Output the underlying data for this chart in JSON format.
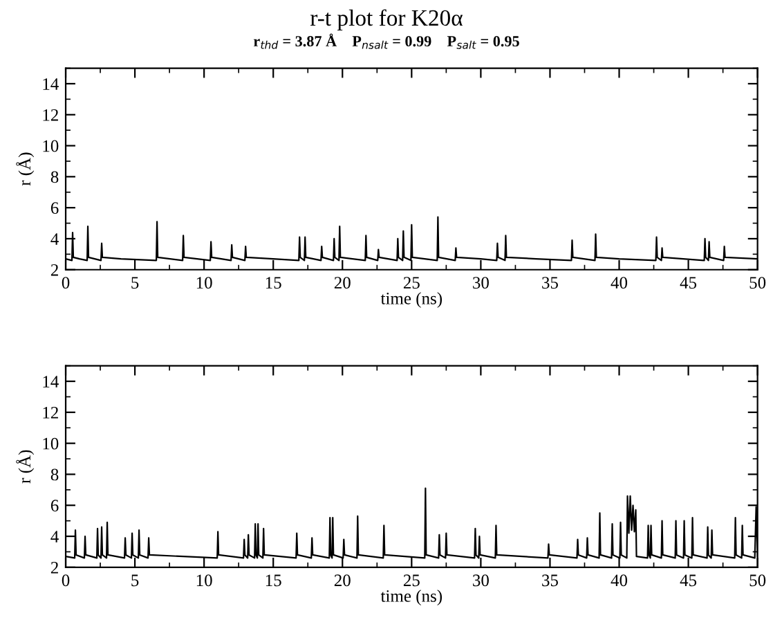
{
  "chart_data": [
    {
      "type": "line",
      "title": "r-t plot for K20α",
      "subtitle": "r$_{thd}$ = 3.87 Å    P$_{nsalt}$ = 0.99    P$_{salt}$ = 0.95",
      "xlabel": "time (ns)",
      "ylabel": "r (Å)",
      "xlim": [
        0,
        50
      ],
      "xticks": [
        0,
        5,
        10,
        15,
        20,
        25,
        30,
        35,
        40,
        45,
        50
      ],
      "ylim": [
        2,
        15
      ],
      "yticks": [
        2,
        4,
        6,
        8,
        10,
        12,
        14
      ],
      "grid": false,
      "legend": false,
      "line_style": "solid",
      "series": [
        {
          "color": "#000000",
          "x": [
            0,
            0.45,
            0.5,
            0.55,
            1.0,
            1.55,
            1.6,
            1.65,
            2.55,
            2.6,
            2.65,
            4.0,
            6.55,
            6.6,
            6.65,
            8.45,
            8.5,
            8.55,
            10.45,
            10.5,
            10.55,
            11.95,
            12,
            12.05,
            12.95,
            13,
            13.05,
            15,
            16.85,
            16.9,
            16.95,
            17.25,
            17.3,
            17.35,
            18.45,
            18.5,
            18.55,
            19.35,
            19.4,
            19.45,
            19.75,
            19.8,
            19.85,
            21.65,
            21.7,
            21.75,
            22.55,
            22.6,
            22.65,
            23.95,
            24,
            24.05,
            24.35,
            24.4,
            24.45,
            24.95,
            25,
            25.05,
            26.85,
            26.9,
            26.95,
            28.15,
            28.2,
            28.25,
            30,
            31.15,
            31.2,
            31.25,
            31.75,
            31.8,
            31.85,
            34,
            36.55,
            36.6,
            36.65,
            38.25,
            38.3,
            38.35,
            40,
            42.65,
            42.7,
            42.75,
            43.05,
            43.1,
            43.15,
            46.15,
            46.2,
            46.25,
            46.45,
            46.5,
            46.55,
            47.55,
            47.6,
            47.65,
            50
          ],
          "values": [
            2.7,
            2.6,
            4.4,
            2.8,
            2.7,
            2.6,
            4.8,
            2.8,
            2.6,
            3.7,
            2.8,
            2.7,
            2.6,
            5.1,
            2.8,
            2.6,
            4.2,
            2.8,
            2.6,
            3.8,
            2.8,
            2.6,
            3.6,
            2.8,
            2.6,
            3.5,
            2.8,
            2.7,
            2.6,
            4.1,
            2.8,
            2.6,
            4.1,
            2.8,
            2.6,
            3.5,
            2.8,
            2.6,
            4.0,
            2.8,
            2.6,
            4.8,
            2.8,
            2.6,
            4.2,
            2.8,
            2.6,
            3.3,
            2.8,
            2.6,
            4.0,
            2.8,
            2.6,
            4.5,
            2.8,
            2.6,
            4.9,
            2.8,
            2.6,
            5.4,
            2.8,
            2.6,
            3.4,
            2.8,
            2.7,
            2.6,
            3.7,
            2.8,
            2.6,
            4.2,
            2.8,
            2.7,
            2.6,
            3.9,
            2.8,
            2.6,
            4.3,
            2.8,
            2.7,
            2.6,
            4.1,
            2.8,
            2.6,
            3.4,
            2.8,
            2.6,
            4.0,
            2.8,
            2.6,
            3.8,
            2.8,
            2.6,
            3.5,
            2.8,
            2.7
          ]
        }
      ]
    },
    {
      "type": "line",
      "xlabel": "time (ns)",
      "ylabel": "r (Å)",
      "xlim": [
        0,
        50
      ],
      "xticks": [
        0,
        5,
        10,
        15,
        20,
        25,
        30,
        35,
        40,
        45,
        50
      ],
      "ylim": [
        2,
        15
      ],
      "yticks": [
        2,
        4,
        6,
        8,
        10,
        12,
        14
      ],
      "grid": false,
      "legend": false,
      "line_style": "solid",
      "series": [
        {
          "color": "#000000",
          "x": [
            0,
            0.65,
            0.7,
            0.75,
            1.35,
            1.4,
            1.45,
            2.25,
            2.3,
            2.35,
            2.55,
            2.6,
            2.65,
            2.95,
            3.0,
            3.05,
            4.25,
            4.3,
            4.35,
            4.75,
            4.8,
            4.85,
            5.25,
            5.3,
            5.35,
            5.95,
            6.0,
            6.05,
            8.5,
            10.95,
            11.0,
            11.05,
            12.85,
            12.9,
            12.95,
            13.15,
            13.2,
            13.25,
            13.65,
            13.7,
            13.75,
            13.85,
            13.9,
            13.95,
            14.25,
            14.3,
            14.35,
            16.65,
            16.7,
            16.75,
            17.75,
            17.8,
            17.85,
            19.05,
            19.1,
            19.15,
            19.25,
            19.3,
            19.35,
            20.05,
            20.1,
            20.15,
            21.05,
            21.1,
            21.15,
            22.95,
            23.0,
            23.05,
            25.95,
            26.0,
            26.05,
            26.95,
            27.0,
            27.05,
            27.45,
            27.5,
            27.55,
            29.55,
            29.6,
            29.65,
            29.85,
            29.9,
            29.95,
            31.05,
            31.1,
            31.15,
            33,
            34.85,
            34.9,
            34.95,
            36.95,
            37.0,
            37.05,
            37.65,
            37.7,
            37.75,
            38.55,
            38.6,
            38.65,
            39.45,
            39.5,
            39.55,
            40.05,
            40.1,
            40.15,
            40.55,
            40.6,
            40.7,
            40.8,
            40.9,
            41.0,
            41.1,
            41.2,
            41.25,
            42.05,
            42.1,
            42.15,
            42.25,
            42.3,
            42.35,
            43.05,
            43.1,
            43.15,
            44.05,
            44.1,
            44.15,
            44.65,
            44.7,
            44.75,
            45.25,
            45.3,
            45.35,
            46.35,
            46.4,
            46.45,
            46.65,
            46.7,
            46.75,
            48.35,
            48.4,
            48.45,
            48.85,
            48.9,
            48.95,
            49.8,
            49.9,
            50
          ],
          "values": [
            2.7,
            2.6,
            4.4,
            2.8,
            2.6,
            4.0,
            2.8,
            2.6,
            4.5,
            2.8,
            2.6,
            4.6,
            2.8,
            2.6,
            4.9,
            2.8,
            2.6,
            3.9,
            2.8,
            2.6,
            4.2,
            2.8,
            2.6,
            4.4,
            2.8,
            2.6,
            3.9,
            2.8,
            2.7,
            2.6,
            4.3,
            2.8,
            2.6,
            3.8,
            2.8,
            2.6,
            4.1,
            2.8,
            2.6,
            4.8,
            2.8,
            2.6,
            4.8,
            2.8,
            2.6,
            4.5,
            2.8,
            2.6,
            4.2,
            2.8,
            2.6,
            3.9,
            2.8,
            2.6,
            5.2,
            2.8,
            2.6,
            5.2,
            2.8,
            2.6,
            3.8,
            2.8,
            2.6,
            5.3,
            2.8,
            2.6,
            4.7,
            2.8,
            2.6,
            7.1,
            2.8,
            2.6,
            4.1,
            2.8,
            2.6,
            4.2,
            2.8,
            2.6,
            4.5,
            2.8,
            2.6,
            4.0,
            2.8,
            2.6,
            4.7,
            2.8,
            2.7,
            2.6,
            3.5,
            2.8,
            2.6,
            3.8,
            2.8,
            2.6,
            3.9,
            2.8,
            2.6,
            5.5,
            2.8,
            2.6,
            4.8,
            2.8,
            2.6,
            4.9,
            2.8,
            2.6,
            6.6,
            4.2,
            6.6,
            4.4,
            6.0,
            4.3,
            5.7,
            2.7,
            2.6,
            4.7,
            2.8,
            2.6,
            4.7,
            2.8,
            2.6,
            5.0,
            2.8,
            2.6,
            5.0,
            2.8,
            2.6,
            5.0,
            2.8,
            2.6,
            5.2,
            2.8,
            2.6,
            4.6,
            2.8,
            2.6,
            4.4,
            2.8,
            2.6,
            5.2,
            2.8,
            2.6,
            4.7,
            2.8,
            2.6,
            5.9,
            2.7
          ]
        }
      ]
    }
  ]
}
